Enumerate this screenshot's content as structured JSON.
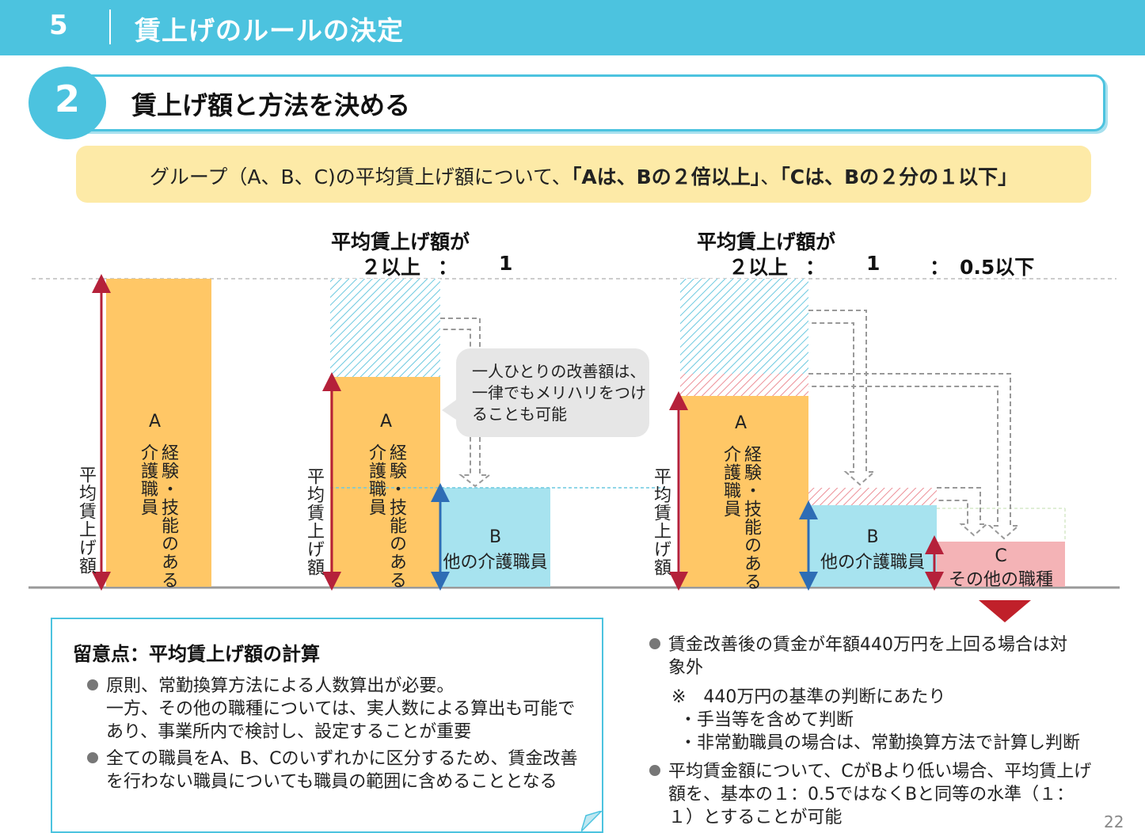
{
  "header": {
    "number": "5",
    "title": "賃上げのルールの決定"
  },
  "section": {
    "number": "2",
    "title": "賃上げ額と方法を決める"
  },
  "banner": {
    "prefix": "グループ（A、B、C)の平均賃上げ額について、",
    "rule1": "「Aは、Bの２倍以上」",
    "sep": "、",
    "rule2": "「Cは、Bの２分の１以下」"
  },
  "diagram": {
    "heading2": {
      "line1": "平均賃上げ額が",
      "ratio_a": "２以上",
      "colon": "：",
      "ratio_b": "1"
    },
    "heading3": {
      "line1": "平均賃上げ額が",
      "ratio_a": "２以上",
      "colon1": "：",
      "ratio_b": "1",
      "colon2": "：",
      "ratio_c": "0.5以下"
    },
    "axis_label": "平均賃上げ額",
    "group_a": {
      "letter": "A",
      "line1": "経験・技能のある",
      "line2": "介護職員"
    },
    "group_b": {
      "letter": "B",
      "label": "他の介護職員"
    },
    "group_c": {
      "letter": "C",
      "label": "その他の職種"
    },
    "callout": "一人ひとりの改善額は、一律でもメリハリをつけることも可能",
    "colors": {
      "orange": "#ffc766",
      "cyan": "#a7e3ef",
      "pink": "#f4b3b6",
      "arrow_red": "#b5213a",
      "arrow_blue": "#2e6db5"
    }
  },
  "notes": {
    "title": "留意点：平均賃上げ額の計算",
    "bullet1": {
      "l1": "原則、常勤換算方法による人数算出が必要。",
      "l2": "一方、その他の職種については、実人数による算出も可能で",
      "l3": "あり、事業所内で検討し、設定することが重要"
    },
    "bullet2": {
      "l1": "全ての職員をA、B、Cのいずれかに区分するため、賃金改善",
      "l2": "を行わない職員についても職員の範囲に含めることとなる"
    }
  },
  "right_notes": {
    "b1_l1": "賃金改善後の賃金が年額440万円を上回る場合は対",
    "b1_l2": "象外",
    "sub_head": "※　440万円の基準の判断にあたり",
    "sub1": "・手当等を含めて判断",
    "sub2": "・非常勤職員の場合は、常勤換算方法で計算し判断",
    "b2_l1": "平均賃金額について、CがBより低い場合、平均賃上げ",
    "b2_l2": "額を、基本の１：0.5ではなくBと同等の水準（１：",
    "b2_l3": "１）とすることが可能"
  },
  "page_number": "22"
}
